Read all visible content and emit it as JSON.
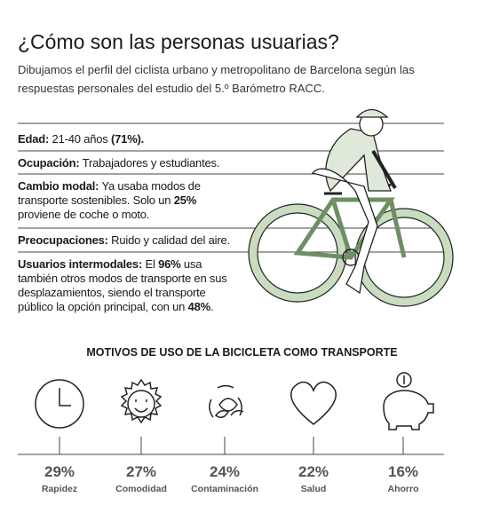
{
  "header": {
    "title": "¿Cómo son las personas usuarias?",
    "subtitle": "Dibujamos el perfil del ciclista urbano y metropolitano de Barcelona según las respuestas personales del estudio del 5.º Barómetro RACC."
  },
  "profile": {
    "rows": [
      {
        "segments": [
          {
            "text": "Edad:",
            "bold": true
          },
          {
            "text": " 21-40 años ",
            "bold": false
          },
          {
            "text": "(71%).",
            "bold": true
          }
        ]
      },
      {
        "segments": [
          {
            "text": "Ocupación:",
            "bold": true
          },
          {
            "text": " Trabajadores y estudiantes.",
            "bold": false
          }
        ]
      },
      {
        "segments": [
          {
            "text": "Cambio modal:",
            "bold": true
          },
          {
            "text": " Ya usaba modos de transporte sostenibles. Solo un ",
            "bold": false
          },
          {
            "text": "25%",
            "bold": true
          },
          {
            "text": " proviene de coche o moto.",
            "bold": false
          }
        ]
      },
      {
        "segments": [
          {
            "text": "Preocupaciones:",
            "bold": true
          },
          {
            "text": " Ruido y calidad del aire.",
            "bold": false
          }
        ]
      },
      {
        "segments": [
          {
            "text": "Usuarios intermodales:",
            "bold": true
          },
          {
            "text": " El ",
            "bold": false
          },
          {
            "text": "96%",
            "bold": true
          },
          {
            "text": " usa también otros modos de transporte en sus desplazamientos, siendo el transporte público la opción principal, con un ",
            "bold": false
          },
          {
            "text": "48%",
            "bold": true
          },
          {
            "text": ".",
            "bold": false
          }
        ]
      }
    ]
  },
  "motives": {
    "title": "MOTIVOS DE USO DE LA BICICLETA COMO TRANSPORTE",
    "items": [
      {
        "percent": "29%",
        "label": "Rapidez"
      },
      {
        "percent": "27%",
        "label": "Comodidad"
      },
      {
        "percent": "24%",
        "label": "Contaminación"
      },
      {
        "percent": "22%",
        "label": "Salud"
      },
      {
        "percent": "16%",
        "label": "Ahorro"
      }
    ]
  }
}
